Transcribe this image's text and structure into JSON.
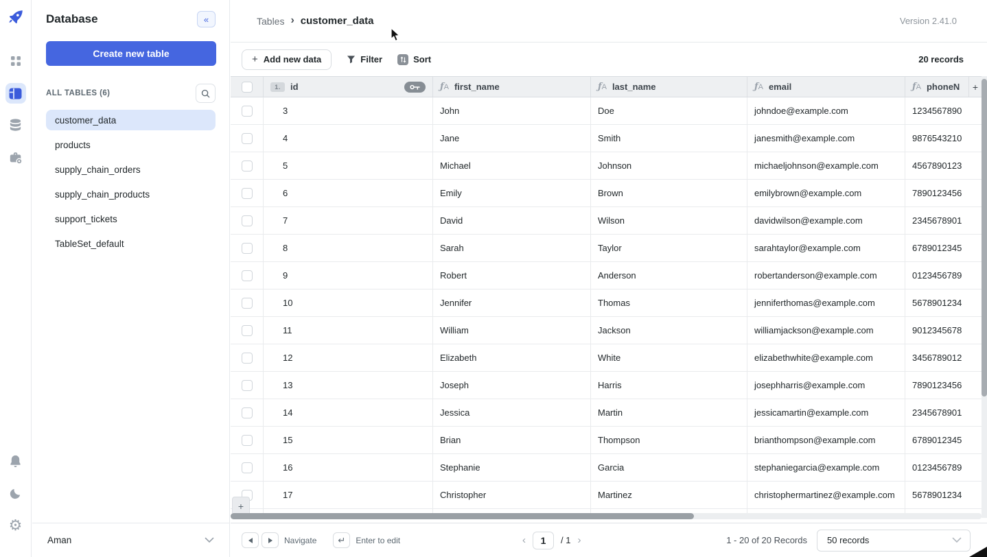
{
  "app": {
    "version_label": "Version 2.41.0"
  },
  "colors": {
    "accent": "#4566e0",
    "selected_bg": "#dce7fb",
    "header_bg": "#eef0f2",
    "icon_gray": "#9ca4ad"
  },
  "rail": {
    "icons": [
      "rocket-logo",
      "apps",
      "tables",
      "database",
      "toolbox",
      "notifications",
      "theme-moon",
      "settings-gear"
    ],
    "selected": "tables"
  },
  "sidebar": {
    "title": "Database",
    "collapse_glyph": "«",
    "create_button": "Create new table",
    "section_label": "ALL TABLES (6)",
    "tables": [
      "customer_data",
      "products",
      "supply_chain_orders",
      "supply_chain_products",
      "support_tickets",
      "TableSet_default"
    ],
    "selected_table": "customer_data",
    "user": "Aman"
  },
  "breadcrumb": {
    "root": "Tables",
    "current": "customer_data"
  },
  "toolbar": {
    "add_button": "Add new data",
    "add_glyph": "+",
    "filter_label": "Filter",
    "sort_label": "Sort",
    "records_count": "20 records"
  },
  "grid": {
    "id_badge": "1.",
    "add_column_glyph": "+",
    "columns": [
      {
        "key": "id",
        "label": "id",
        "type": "number",
        "primary": true
      },
      {
        "key": "first_name",
        "label": "first_name",
        "type": "text"
      },
      {
        "key": "last_name",
        "label": "last_name",
        "type": "text"
      },
      {
        "key": "email",
        "label": "email",
        "type": "text"
      },
      {
        "key": "phone",
        "label": "phoneN",
        "type": "text"
      }
    ],
    "rows": [
      {
        "id": "3",
        "first_name": "John",
        "last_name": "Doe",
        "email": "johndoe@example.com",
        "phone": "1234567890"
      },
      {
        "id": "4",
        "first_name": "Jane",
        "last_name": "Smith",
        "email": "janesmith@example.com",
        "phone": "9876543210"
      },
      {
        "id": "5",
        "first_name": "Michael",
        "last_name": "Johnson",
        "email": "michaeljohnson@example.com",
        "phone": "4567890123"
      },
      {
        "id": "6",
        "first_name": "Emily",
        "last_name": "Brown",
        "email": "emilybrown@example.com",
        "phone": "7890123456"
      },
      {
        "id": "7",
        "first_name": "David",
        "last_name": "Wilson",
        "email": "davidwilson@example.com",
        "phone": "2345678901"
      },
      {
        "id": "8",
        "first_name": "Sarah",
        "last_name": "Taylor",
        "email": "sarahtaylor@example.com",
        "phone": "6789012345"
      },
      {
        "id": "9",
        "first_name": "Robert",
        "last_name": "Anderson",
        "email": "robertanderson@example.com",
        "phone": "0123456789"
      },
      {
        "id": "10",
        "first_name": "Jennifer",
        "last_name": "Thomas",
        "email": "jenniferthomas@example.com",
        "phone": "5678901234"
      },
      {
        "id": "11",
        "first_name": "William",
        "last_name": "Jackson",
        "email": "williamjackson@example.com",
        "phone": "9012345678"
      },
      {
        "id": "12",
        "first_name": "Elizabeth",
        "last_name": "White",
        "email": "elizabethwhite@example.com",
        "phone": "3456789012"
      },
      {
        "id": "13",
        "first_name": "Joseph",
        "last_name": "Harris",
        "email": "josephharris@example.com",
        "phone": "7890123456"
      },
      {
        "id": "14",
        "first_name": "Jessica",
        "last_name": "Martin",
        "email": "jessicamartin@example.com",
        "phone": "2345678901"
      },
      {
        "id": "15",
        "first_name": "Brian",
        "last_name": "Thompson",
        "email": "brianthompson@example.com",
        "phone": "6789012345"
      },
      {
        "id": "16",
        "first_name": "Stephanie",
        "last_name": "Garcia",
        "email": "stephaniegarcia@example.com",
        "phone": "0123456789"
      },
      {
        "id": "17",
        "first_name": "Christopher",
        "last_name": "Martinez",
        "email": "christophermartinez@example.com",
        "phone": "5678901234"
      }
    ]
  },
  "bottombar": {
    "navigate_label": "Navigate",
    "enter_glyph": "↵",
    "enter_label": "Enter to edit",
    "page_value": "1",
    "page_total": "/ 1",
    "prev_glyph": "‹",
    "next_glyph": "›",
    "range_text": "1 - 20 of 20 Records",
    "page_size_value": "50 records"
  }
}
